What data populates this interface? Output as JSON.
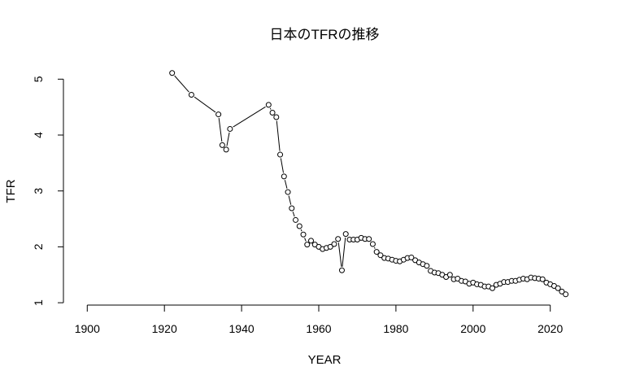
{
  "chart_data": {
    "type": "line",
    "plot_style": "points-and-lines (R type='b')",
    "title": "日本のTFRの推移",
    "xlabel": "YEAR",
    "ylabel": "TFR",
    "xlim": [
      1900,
      2024
    ],
    "ylim": [
      1,
      5
    ],
    "x_ticks": [
      1900,
      1920,
      1940,
      1960,
      1980,
      2000,
      2020
    ],
    "y_ticks": [
      1,
      2,
      3,
      4,
      5
    ],
    "grid": false,
    "legend": null,
    "series": [
      {
        "name": "TFR",
        "x": [
          1922,
          1927,
          1934,
          1935,
          1936,
          1937,
          1947,
          1948,
          1949,
          1950,
          1951,
          1952,
          1953,
          1954,
          1955,
          1956,
          1957,
          1958,
          1959,
          1960,
          1961,
          1962,
          1963,
          1964,
          1965,
          1966,
          1967,
          1968,
          1969,
          1970,
          1971,
          1972,
          1973,
          1974,
          1975,
          1976,
          1977,
          1978,
          1979,
          1980,
          1981,
          1982,
          1983,
          1984,
          1985,
          1986,
          1987,
          1988,
          1989,
          1990,
          1991,
          1992,
          1993,
          1994,
          1995,
          1996,
          1997,
          1998,
          1999,
          2000,
          2001,
          2002,
          2003,
          2004,
          2005,
          2006,
          2007,
          2008,
          2009,
          2010,
          2011,
          2012,
          2013,
          2014,
          2015,
          2016,
          2017,
          2018,
          2019,
          2020,
          2021,
          2022,
          2023,
          2024
        ],
        "values": [
          5.11,
          4.72,
          4.37,
          3.82,
          3.74,
          4.11,
          4.54,
          4.4,
          4.32,
          3.65,
          3.26,
          2.98,
          2.69,
          2.48,
          2.37,
          2.22,
          2.04,
          2.11,
          2.04,
          2.0,
          1.96,
          1.98,
          2.0,
          2.05,
          2.14,
          1.58,
          2.23,
          2.13,
          2.13,
          2.13,
          2.16,
          2.14,
          2.14,
          2.05,
          1.91,
          1.85,
          1.8,
          1.79,
          1.77,
          1.75,
          1.74,
          1.77,
          1.8,
          1.81,
          1.76,
          1.72,
          1.69,
          1.66,
          1.57,
          1.54,
          1.53,
          1.5,
          1.46,
          1.5,
          1.42,
          1.43,
          1.39,
          1.38,
          1.34,
          1.36,
          1.33,
          1.32,
          1.29,
          1.29,
          1.26,
          1.32,
          1.34,
          1.37,
          1.37,
          1.39,
          1.39,
          1.41,
          1.43,
          1.42,
          1.45,
          1.44,
          1.43,
          1.42,
          1.36,
          1.33,
          1.3,
          1.26,
          1.2,
          1.15
        ]
      }
    ]
  },
  "colors": {
    "background": "#ffffff",
    "foreground": "#000000"
  }
}
